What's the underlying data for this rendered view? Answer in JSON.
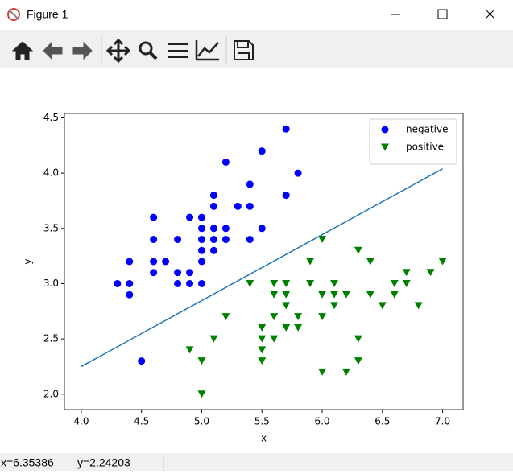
{
  "window": {
    "title": "Figure 1"
  },
  "status": {
    "x_readout": "x=6.35386",
    "y_readout": "y=2.24203"
  },
  "chart_data": {
    "type": "scatter",
    "x_label": "x",
    "y_label": "y",
    "xlim": [
      3.86,
      7.17
    ],
    "ylim": [
      1.86,
      4.54
    ],
    "xticks": [
      {
        "value": 4,
        "label": "4.0"
      },
      {
        "value": 4.5,
        "label": "4.5"
      },
      {
        "value": 5,
        "label": "5.0"
      },
      {
        "value": 5.5,
        "label": "5.5"
      },
      {
        "value": 6,
        "label": "6.0"
      },
      {
        "value": 6.5,
        "label": "6.5"
      },
      {
        "value": 7,
        "label": "7.0"
      }
    ],
    "yticks": [
      {
        "value": 2,
        "label": "2.0"
      },
      {
        "value": 2.5,
        "label": "2.5"
      },
      {
        "value": 3,
        "label": "3.0"
      },
      {
        "value": 3.5,
        "label": "3.5"
      },
      {
        "value": 4,
        "label": "4.0"
      },
      {
        "value": 4.5,
        "label": "4.5"
      }
    ],
    "legend": "upper right",
    "series": [
      {
        "name": "negative",
        "color": "#0000ff",
        "marker": "circle",
        "x": [
          4.3,
          4.4,
          4.4,
          4.4,
          4.5,
          4.6,
          4.6,
          4.6,
          4.6,
          4.7,
          4.8,
          4.8,
          4.8,
          4.9,
          4.9,
          4.9,
          5.0,
          5.0,
          5.0,
          5.0,
          5.0,
          5.0,
          5.1,
          5.1,
          5.1,
          5.1,
          5.1,
          5.2,
          5.2,
          5.2,
          5.3,
          5.4,
          5.4,
          5.4,
          5.5,
          5.5,
          5.7,
          5.7,
          5.8
        ],
        "y": [
          3.0,
          3.2,
          3.0,
          2.9,
          2.3,
          3.6,
          3.4,
          3.2,
          3.1,
          3.2,
          3.4,
          3.1,
          3.0,
          3.6,
          3.1,
          3.0,
          3.6,
          3.5,
          3.4,
          3.3,
          3.2,
          3.0,
          3.8,
          3.7,
          3.5,
          3.4,
          3.3,
          4.1,
          3.5,
          3.4,
          3.7,
          3.9,
          3.7,
          3.4,
          4.2,
          3.5,
          4.4,
          3.8,
          4.0
        ]
      },
      {
        "name": "positive",
        "color": "#008000",
        "marker": "triangle-down",
        "x": [
          4.9,
          5.0,
          5.0,
          5.1,
          5.2,
          5.4,
          5.5,
          5.5,
          5.5,
          5.5,
          5.6,
          5.6,
          5.6,
          5.6,
          5.7,
          5.7,
          5.7,
          5.7,
          5.8,
          5.8,
          5.9,
          5.9,
          6.0,
          6.0,
          6.0,
          6.0,
          6.1,
          6.1,
          6.1,
          6.2,
          6.2,
          6.3,
          6.3,
          6.3,
          6.4,
          6.4,
          6.5,
          6.6,
          6.6,
          6.7,
          6.7,
          6.8,
          6.9,
          7.0
        ],
        "y": [
          2.4,
          2.3,
          2.0,
          2.5,
          2.7,
          3.0,
          2.6,
          2.5,
          2.4,
          2.3,
          3.0,
          2.9,
          2.7,
          2.5,
          3.0,
          2.9,
          2.8,
          2.6,
          2.7,
          2.6,
          3.2,
          3.0,
          3.4,
          2.9,
          2.7,
          2.2,
          3.0,
          2.9,
          2.8,
          2.9,
          2.2,
          3.3,
          2.5,
          2.3,
          3.2,
          2.9,
          2.8,
          3.0,
          2.9,
          3.1,
          3.0,
          2.8,
          3.1,
          3.2
        ]
      }
    ],
    "lines": [
      {
        "color": "#1f77b4",
        "x": [
          4.0,
          7.0
        ],
        "y": [
          2.25,
          4.04
        ]
      }
    ]
  }
}
